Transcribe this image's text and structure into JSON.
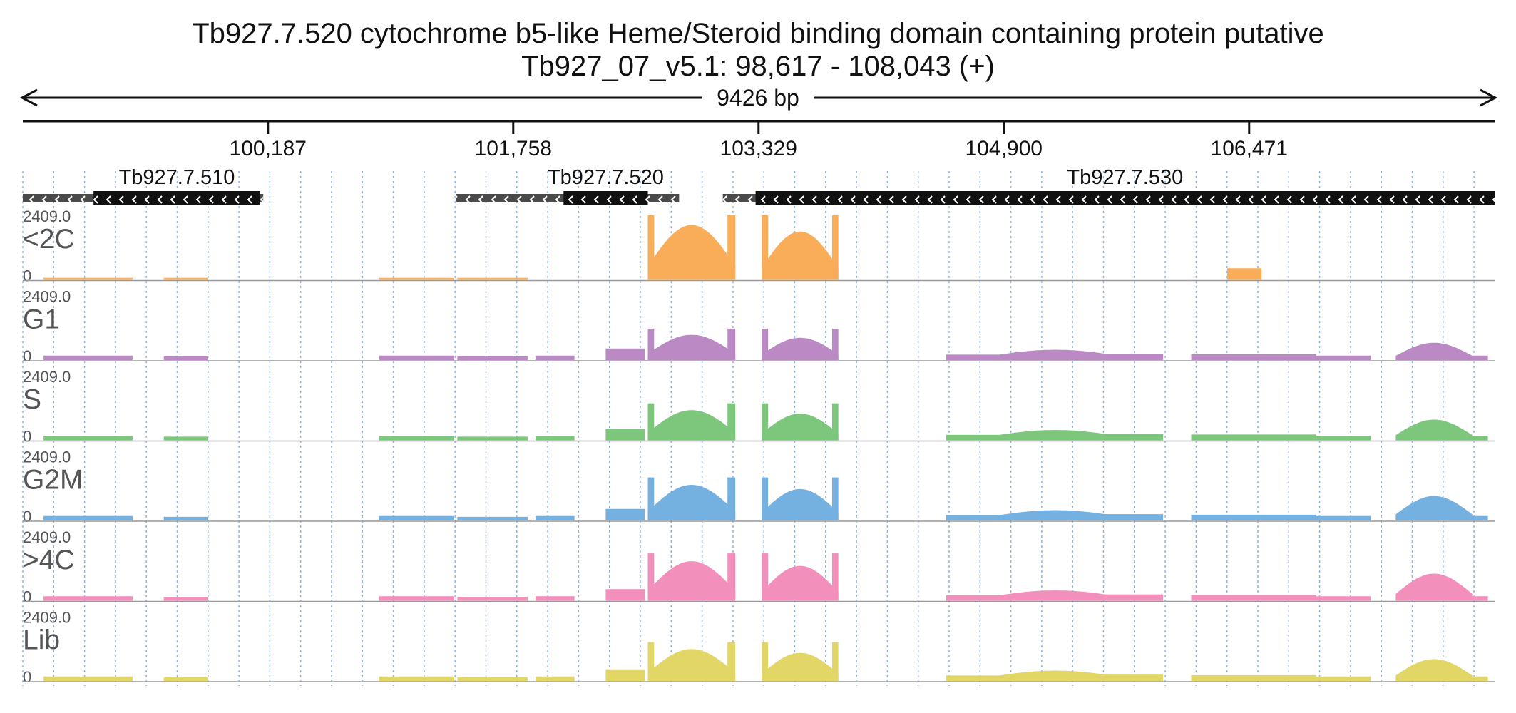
{
  "header": {
    "title": "Tb927.7.520  cytochrome b5-like Heme/Steroid binding domain containing protein  putative",
    "locus": "Tb927_07_v5.1: 98,617 - 108,043 (+)",
    "span": "9426 bp"
  },
  "region": {
    "start": 98617,
    "end": 108043
  },
  "ruler": {
    "ticks": [
      {
        "pos": 100187,
        "label": "100,187"
      },
      {
        "pos": 101758,
        "label": "101,758"
      },
      {
        "pos": 103329,
        "label": "103,329"
      },
      {
        "pos": 104900,
        "label": "104,900"
      },
      {
        "pos": 106471,
        "label": "106,471"
      }
    ]
  },
  "genes": [
    {
      "name": "Tb927.7.510",
      "start": 98617,
      "end": 100157,
      "cds_start": 99070,
      "cds_end": 100137,
      "strand": "-"
    },
    {
      "name": "Tb927.7.520",
      "start": 101390,
      "end": 102820,
      "cds_start": 102080,
      "cds_end": 102620,
      "strand": "-"
    },
    {
      "name": "Tb927.7.530",
      "start": 103100,
      "end": 108043,
      "cds_start": 103310,
      "cds_end": 108043,
      "strand": "-"
    }
  ],
  "tracks": [
    {
      "name": "<2C",
      "max": "2409.0",
      "min": "0",
      "color": "#f9ad59"
    },
    {
      "name": "G1",
      "max": "2409.0",
      "min": "0",
      "color": "#bb8ac5"
    },
    {
      "name": "S",
      "max": "2409.0",
      "min": "0",
      "color": "#7cc77b"
    },
    {
      "name": "G2M",
      "max": "2409.0",
      "min": "0",
      "color": "#74b0e0"
    },
    {
      "name": ">4C",
      "max": "2409.0",
      "min": "0",
      "color": "#f290bb"
    },
    {
      "name": "Lib",
      "max": "2409.0",
      "min": "0",
      "color": "#e2d666"
    }
  ]
}
